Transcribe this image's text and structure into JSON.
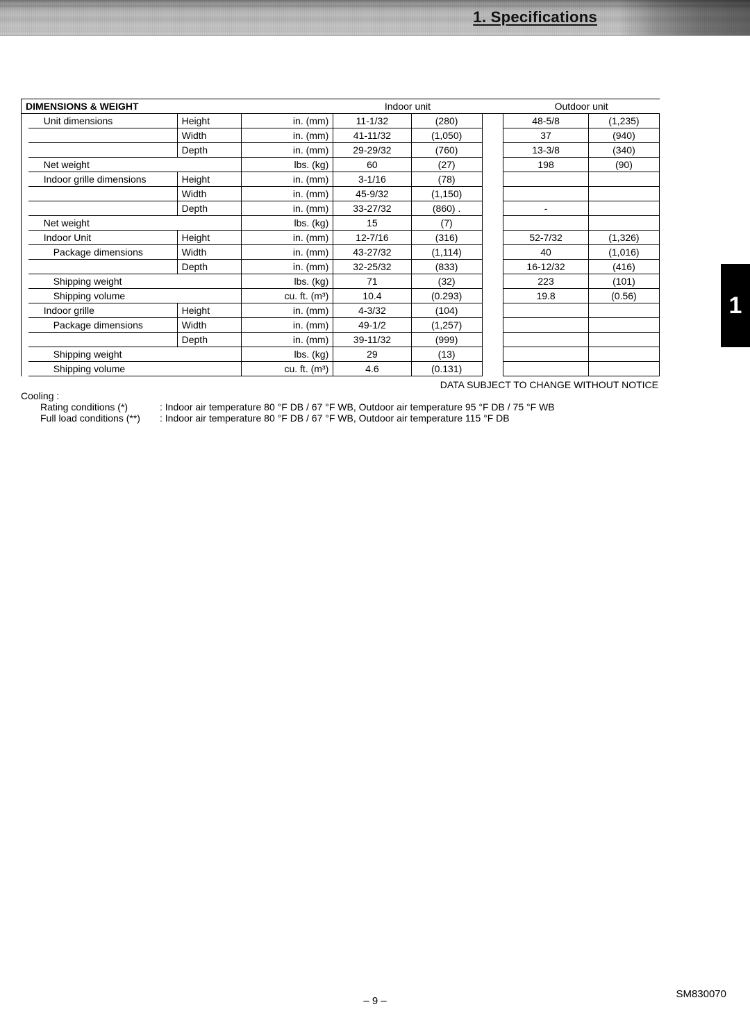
{
  "header": {
    "title": "1. Specifications"
  },
  "sideTab": "1",
  "table": {
    "sectionTitle": "DIMENSIONS & WEIGHT",
    "colHeaders": {
      "indoor": "Indoor unit",
      "outdoor": "Outdoor unit"
    },
    "rows": [
      {
        "label": "Unit dimensions",
        "subparam": "Height",
        "unit": "in. (mm)",
        "iv": "11-1/32",
        "im": "(280)",
        "ov": "48-5/8",
        "om": "(1,235)",
        "labelClass": "indent1"
      },
      {
        "label": "",
        "subparam": "Width",
        "unit": "in. (mm)",
        "iv": "41-11/32",
        "im": "(1,050)",
        "ov": "37",
        "om": "(940)"
      },
      {
        "label": "",
        "subparam": "Depth",
        "unit": "in. (mm)",
        "iv": "29-29/32",
        "im": "(760)",
        "ov": "13-3/8",
        "om": "(340)"
      },
      {
        "label": "Net weight",
        "subparam": "",
        "unit": "lbs. (kg)",
        "iv": "60",
        "im": "(27)",
        "ov": "198",
        "om": "(90)",
        "labelClass": "indent1"
      },
      {
        "label": "Indoor grille dimensions",
        "subparam": "Height",
        "unit": "in. (mm)",
        "iv": "3-1/16",
        "im": "(78)",
        "ov": "",
        "om": "",
        "labelClass": "indent1"
      },
      {
        "label": "",
        "subparam": "Width",
        "unit": "in. (mm)",
        "iv": "45-9/32",
        "im": "(1,150)",
        "ov": "",
        "om": ""
      },
      {
        "label": "",
        "subparam": "Depth",
        "unit": "in. (mm)",
        "iv": "33-27/32",
        "im": "(860) .",
        "ov": "-",
        "om": ""
      },
      {
        "label": "Net weight",
        "subparam": "",
        "unit": "lbs. (kg)",
        "iv": "15",
        "im": "(7)",
        "ov": "",
        "om": "",
        "labelClass": "indent1"
      },
      {
        "label": "Indoor Unit",
        "subparam": "Height",
        "unit": "in. (mm)",
        "iv": "12-7/16",
        "im": "(316)",
        "ov": "52-7/32",
        "om": "(1,326)",
        "labelClass": "indent1"
      },
      {
        "label": "Package dimensions",
        "subparam": "Width",
        "unit": "in. (mm)",
        "iv": "43-27/32",
        "im": "(1,114)",
        "ov": "40",
        "om": "(1,016)",
        "labelClass": "indent2"
      },
      {
        "label": "",
        "subparam": "Depth",
        "unit": "in. (mm)",
        "iv": "32-25/32",
        "im": "(833)",
        "ov": "16-12/32",
        "om": "(416)"
      },
      {
        "label": "Shipping weight",
        "subparam": "",
        "unit": "lbs. (kg)",
        "iv": "71",
        "im": "(32)",
        "ov": "223",
        "om": "(101)",
        "labelClass": "indent2"
      },
      {
        "label": "Shipping volume",
        "subparam": "",
        "unit": "cu. ft. (m³)",
        "iv": "10.4",
        "im": "(0.293)",
        "ov": "19.8",
        "om": "(0.56)",
        "labelClass": "indent2"
      },
      {
        "label": "Indoor grille",
        "subparam": "Height",
        "unit": "in. (mm)",
        "iv": "4-3/32",
        "im": "(104)",
        "ov": "",
        "om": "",
        "labelClass": "indent1"
      },
      {
        "label": "Package dimensions",
        "subparam": "Width",
        "unit": "in. (mm)",
        "iv": "49-1/2",
        "im": "(1,257)",
        "ov": "",
        "om": "",
        "labelClass": "indent2"
      },
      {
        "label": "",
        "subparam": "Depth",
        "unit": "in. (mm)",
        "iv": "39-11/32",
        "im": "(999)",
        "ov": "",
        "om": ""
      },
      {
        "label": "Shipping weight",
        "subparam": "",
        "unit": "lbs. (kg)",
        "iv": "29",
        "im": "(13)",
        "ov": "",
        "om": "",
        "labelClass": "indent2"
      },
      {
        "label": "Shipping volume",
        "subparam": "",
        "unit": "cu. ft. (m³)",
        "iv": "4.6",
        "im": "(0.131)",
        "ov": "",
        "om": "",
        "labelClass": "indent2"
      }
    ]
  },
  "notes": {
    "notice": "DATA SUBJECT TO CHANGE WITHOUT NOTICE",
    "coolingLabel": "Cooling :",
    "conds": [
      {
        "label": "Rating conditions (*)",
        "text": ": Indoor air temperature 80 °F DB / 67 °F WB, Outdoor air temperature 95 °F DB / 75 °F WB"
      },
      {
        "label": "Full load conditions (**)",
        "text": ": Indoor air temperature 80 °F DB / 67 °F WB, Outdoor air temperature 115 °F DB"
      }
    ]
  },
  "pageNumber": "– 9 –",
  "docCode": "SM830070"
}
